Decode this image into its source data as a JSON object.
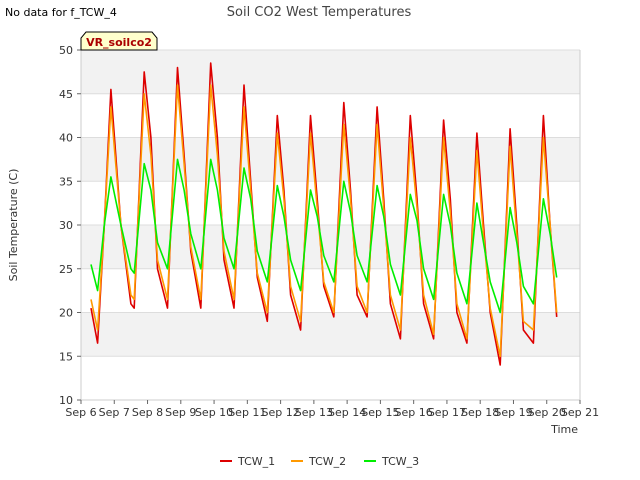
{
  "note": "No data for f_TCW_4",
  "badge": "VR_soilco2",
  "chart_data": {
    "type": "line",
    "title": "Soil CO2 West Temperatures",
    "xlabel": "Time",
    "ylabel": "Soil Temperature (C)",
    "xlim": [
      6,
      21
    ],
    "ylim": [
      10,
      50
    ],
    "x_ticks": [
      {
        "x": 6,
        "label": "Sep 6"
      },
      {
        "x": 7,
        "label": "Sep 7"
      },
      {
        "x": 8,
        "label": "Sep 8"
      },
      {
        "x": 9,
        "label": "Sep 9"
      },
      {
        "x": 10,
        "label": "Sep 10"
      },
      {
        "x": 11,
        "label": "Sep 11"
      },
      {
        "x": 12,
        "label": "Sep 12"
      },
      {
        "x": 13,
        "label": "Sep 13"
      },
      {
        "x": 14,
        "label": "Sep 14"
      },
      {
        "x": 15,
        "label": "Sep 15"
      },
      {
        "x": 16,
        "label": "Sep 16"
      },
      {
        "x": 17,
        "label": "Sep 17"
      },
      {
        "x": 18,
        "label": "Sep 18"
      },
      {
        "x": 19,
        "label": "Sep 19"
      },
      {
        "x": 20,
        "label": "Sep 20"
      },
      {
        "x": 21,
        "label": "Sep 21"
      }
    ],
    "y_ticks": [
      10,
      15,
      20,
      25,
      30,
      35,
      40,
      45,
      50
    ],
    "grid": true,
    "legend_position": "bottom-center",
    "series": [
      {
        "name": "TCW_1",
        "color": "#dd0000",
        "points": [
          [
            6.3,
            20.5
          ],
          [
            6.5,
            16.5
          ],
          [
            6.7,
            30
          ],
          [
            6.9,
            45.5
          ],
          [
            7.2,
            30
          ],
          [
            7.5,
            21
          ],
          [
            7.6,
            20.5
          ],
          [
            7.9,
            47.5
          ],
          [
            8.1,
            40
          ],
          [
            8.3,
            25
          ],
          [
            8.6,
            20.5
          ],
          [
            8.9,
            48
          ],
          [
            9.1,
            38
          ],
          [
            9.3,
            27
          ],
          [
            9.6,
            20.5
          ],
          [
            9.9,
            48.5
          ],
          [
            10.1,
            40
          ],
          [
            10.3,
            26
          ],
          [
            10.6,
            20.5
          ],
          [
            10.9,
            46
          ],
          [
            11.1,
            35
          ],
          [
            11.3,
            24
          ],
          [
            11.6,
            19
          ],
          [
            11.9,
            42.5
          ],
          [
            12.1,
            34
          ],
          [
            12.3,
            22
          ],
          [
            12.6,
            18
          ],
          [
            12.9,
            42.5
          ],
          [
            13.1,
            33
          ],
          [
            13.3,
            23
          ],
          [
            13.6,
            19.5
          ],
          [
            13.9,
            44
          ],
          [
            14.1,
            34
          ],
          [
            14.3,
            22
          ],
          [
            14.6,
            19.5
          ],
          [
            14.9,
            43.5
          ],
          [
            15.1,
            33
          ],
          [
            15.3,
            21
          ],
          [
            15.6,
            17
          ],
          [
            15.9,
            42.5
          ],
          [
            16.1,
            33
          ],
          [
            16.3,
            21
          ],
          [
            16.6,
            17
          ],
          [
            16.9,
            42
          ],
          [
            17.1,
            33
          ],
          [
            17.3,
            20
          ],
          [
            17.6,
            16.5
          ],
          [
            17.9,
            40.5
          ],
          [
            18.1,
            30
          ],
          [
            18.3,
            20
          ],
          [
            18.6,
            14
          ],
          [
            18.9,
            41
          ],
          [
            19.1,
            30
          ],
          [
            19.3,
            18
          ],
          [
            19.6,
            16.5
          ],
          [
            19.9,
            42.5
          ],
          [
            20.1,
            30
          ],
          [
            20.3,
            19.5
          ]
        ]
      },
      {
        "name": "TCW_2",
        "color": "#ff9900",
        "points": [
          [
            6.3,
            21.5
          ],
          [
            6.5,
            18
          ],
          [
            6.7,
            30
          ],
          [
            6.9,
            43.5
          ],
          [
            7.2,
            30
          ],
          [
            7.5,
            22
          ],
          [
            7.6,
            21.5
          ],
          [
            7.9,
            45
          ],
          [
            8.1,
            38
          ],
          [
            8.3,
            26
          ],
          [
            8.6,
            21.5
          ],
          [
            8.9,
            46
          ],
          [
            9.1,
            37
          ],
          [
            9.3,
            27.5
          ],
          [
            9.6,
            21.5
          ],
          [
            9.9,
            46
          ],
          [
            10.1,
            38
          ],
          [
            10.3,
            27
          ],
          [
            10.6,
            21.5
          ],
          [
            10.9,
            43.5
          ],
          [
            11.1,
            34
          ],
          [
            11.3,
            24.5
          ],
          [
            11.6,
            20
          ],
          [
            11.9,
            40.5
          ],
          [
            12.1,
            33
          ],
          [
            12.3,
            23
          ],
          [
            12.6,
            19
          ],
          [
            12.9,
            40.5
          ],
          [
            13.1,
            32
          ],
          [
            13.3,
            23.5
          ],
          [
            13.6,
            20
          ],
          [
            13.9,
            41.5
          ],
          [
            14.1,
            33
          ],
          [
            14.3,
            23
          ],
          [
            14.6,
            20
          ],
          [
            14.9,
            41.5
          ],
          [
            15.1,
            32
          ],
          [
            15.3,
            22
          ],
          [
            15.6,
            18
          ],
          [
            15.9,
            40
          ],
          [
            16.1,
            32
          ],
          [
            16.3,
            22
          ],
          [
            16.6,
            17.5
          ],
          [
            16.9,
            40
          ],
          [
            17.1,
            31.5
          ],
          [
            17.3,
            21
          ],
          [
            17.6,
            17
          ],
          [
            17.9,
            38.5
          ],
          [
            18.1,
            29
          ],
          [
            18.3,
            20.5
          ],
          [
            18.6,
            15
          ],
          [
            18.9,
            39
          ],
          [
            19.1,
            29
          ],
          [
            19.3,
            19
          ],
          [
            19.6,
            18
          ],
          [
            19.9,
            40
          ],
          [
            20.1,
            30
          ],
          [
            20.3,
            20
          ]
        ]
      },
      {
        "name": "TCW_3",
        "color": "#00ee00",
        "points": [
          [
            6.3,
            25.5
          ],
          [
            6.5,
            22.5
          ],
          [
            6.7,
            30
          ],
          [
            6.9,
            35.5
          ],
          [
            7.2,
            30
          ],
          [
            7.5,
            25
          ],
          [
            7.6,
            24.5
          ],
          [
            7.9,
            37
          ],
          [
            8.1,
            34
          ],
          [
            8.3,
            28
          ],
          [
            8.6,
            25
          ],
          [
            8.9,
            37.5
          ],
          [
            9.1,
            34
          ],
          [
            9.3,
            29
          ],
          [
            9.6,
            25
          ],
          [
            9.9,
            37.5
          ],
          [
            10.1,
            34
          ],
          [
            10.3,
            28.5
          ],
          [
            10.6,
            25
          ],
          [
            10.9,
            36.5
          ],
          [
            11.1,
            33
          ],
          [
            11.3,
            27
          ],
          [
            11.6,
            23.5
          ],
          [
            11.9,
            34.5
          ],
          [
            12.1,
            31
          ],
          [
            12.3,
            26
          ],
          [
            12.6,
            22.5
          ],
          [
            12.9,
            34
          ],
          [
            13.1,
            31
          ],
          [
            13.3,
            26.5
          ],
          [
            13.6,
            23.5
          ],
          [
            13.9,
            35
          ],
          [
            14.1,
            31.5
          ],
          [
            14.3,
            26.5
          ],
          [
            14.6,
            23.5
          ],
          [
            14.9,
            34.5
          ],
          [
            15.1,
            31
          ],
          [
            15.3,
            25.5
          ],
          [
            15.6,
            22
          ],
          [
            15.9,
            33.5
          ],
          [
            16.1,
            30.5
          ],
          [
            16.3,
            25
          ],
          [
            16.6,
            21.5
          ],
          [
            16.9,
            33.5
          ],
          [
            17.1,
            30
          ],
          [
            17.3,
            24.5
          ],
          [
            17.6,
            21
          ],
          [
            17.9,
            32.5
          ],
          [
            18.1,
            28
          ],
          [
            18.3,
            23.5
          ],
          [
            18.6,
            20
          ],
          [
            18.9,
            32
          ],
          [
            19.1,
            28
          ],
          [
            19.3,
            23
          ],
          [
            19.6,
            21
          ],
          [
            19.9,
            33
          ],
          [
            20.1,
            29
          ],
          [
            20.3,
            24
          ]
        ]
      }
    ]
  }
}
